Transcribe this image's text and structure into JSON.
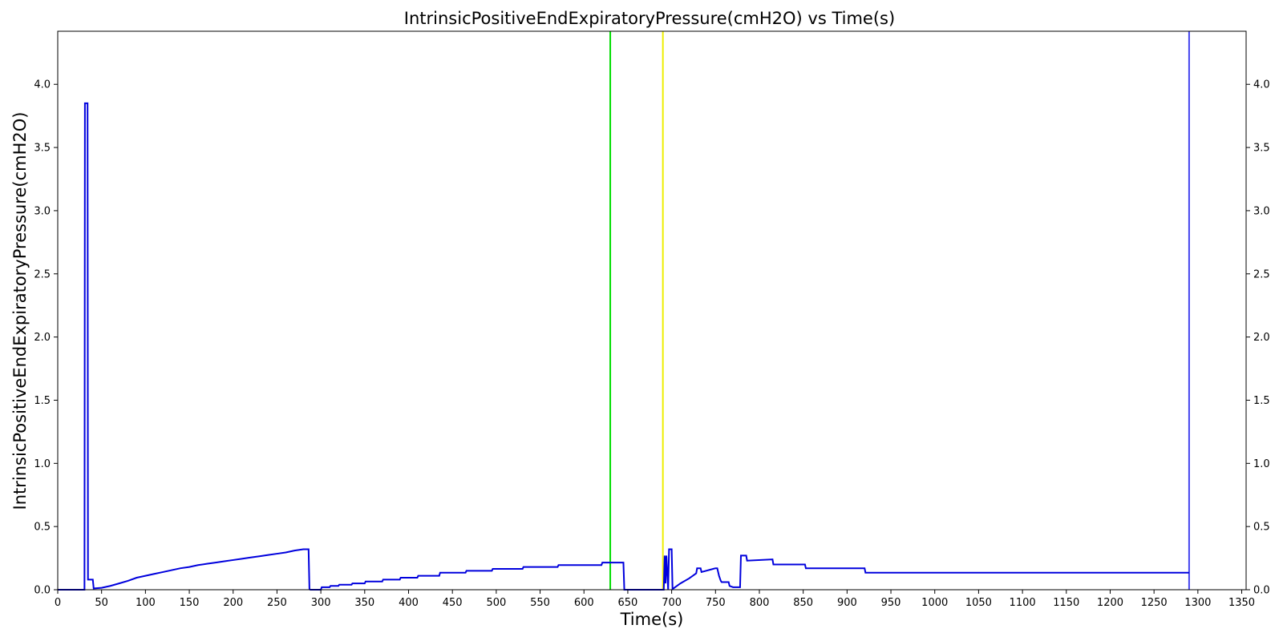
{
  "chart_data": {
    "type": "line",
    "title": "IntrinsicPositiveEndExpiratoryPressure(cmH2O) vs Time(s)",
    "xlabel": "Time(s)",
    "ylabel": "IntrinsicPositiveEndExpiratoryPressure(cmH2O)",
    "xlim": [
      0,
      1355
    ],
    "ylim": [
      0,
      4.42
    ],
    "x_ticks": [
      0,
      50,
      100,
      150,
      200,
      250,
      300,
      350,
      400,
      450,
      500,
      550,
      600,
      650,
      700,
      750,
      800,
      850,
      900,
      950,
      1000,
      1050,
      1100,
      1150,
      1200,
      1250,
      1300,
      1350
    ],
    "y_ticks": [
      0.0,
      0.5,
      1.0,
      1.5,
      2.0,
      2.5,
      3.0,
      3.5,
      4.0
    ],
    "y_tick_labels": [
      "0.0",
      "0.5",
      "1.0",
      "1.5",
      "2.0",
      "2.5",
      "3.0",
      "3.5",
      "4.0"
    ],
    "right_axis_ticks": true,
    "grid": false,
    "series": [
      {
        "color": "#0000dd",
        "x": [
          0,
          30.5,
          31,
          34,
          34.5,
          35.5,
          36,
          40,
          41,
          50,
          60,
          70,
          80,
          90,
          100,
          110,
          120,
          130,
          140,
          150,
          160,
          170,
          180,
          190,
          200,
          210,
          220,
          230,
          240,
          250,
          260,
          270,
          280,
          286,
          287,
          288,
          295,
          300,
          301,
          310,
          311,
          320,
          321,
          335,
          336,
          350,
          351,
          370,
          371,
          390,
          391,
          410,
          411,
          435,
          436,
          465,
          466,
          495,
          496,
          530,
          531,
          570,
          571,
          620,
          621,
          645,
          646,
          690,
          691,
          692,
          693,
          694,
          696,
          697,
          698,
          700,
          701,
          710,
          720,
          728,
          729,
          733,
          734,
          750,
          752,
          753,
          754,
          756,
          757,
          760,
          765,
          766,
          770,
          777,
          778,
          779,
          785,
          786,
          815,
          816,
          852,
          853,
          920,
          921,
          1290
        ],
        "y": [
          0.0,
          0.0,
          3.85,
          3.85,
          0.08,
          0.08,
          0.08,
          0.08,
          0.01,
          0.015,
          0.03,
          0.05,
          0.07,
          0.095,
          0.11,
          0.125,
          0.14,
          0.155,
          0.17,
          0.18,
          0.195,
          0.205,
          0.215,
          0.225,
          0.235,
          0.245,
          0.255,
          0.265,
          0.275,
          0.285,
          0.295,
          0.31,
          0.32,
          0.32,
          0.005,
          0.0,
          0.0,
          0.0,
          0.02,
          0.02,
          0.03,
          0.03,
          0.04,
          0.04,
          0.05,
          0.05,
          0.065,
          0.065,
          0.08,
          0.08,
          0.095,
          0.095,
          0.11,
          0.11,
          0.135,
          0.135,
          0.15,
          0.15,
          0.165,
          0.165,
          0.18,
          0.18,
          0.195,
          0.195,
          0.215,
          0.215,
          0.0,
          0.0,
          0.0,
          0.27,
          0.05,
          0.27,
          0.0,
          0.32,
          0.32,
          0.32,
          0.005,
          0.05,
          0.09,
          0.13,
          0.17,
          0.17,
          0.14,
          0.17,
          0.17,
          0.14,
          0.11,
          0.07,
          0.06,
          0.06,
          0.06,
          0.03,
          0.02,
          0.02,
          0.02,
          0.27,
          0.27,
          0.23,
          0.24,
          0.2,
          0.2,
          0.17,
          0.17,
          0.135,
          0.135
        ]
      }
    ],
    "vertical_lines": [
      {
        "x": 630,
        "color": "#00dd00"
      },
      {
        "x": 690,
        "color": "#eeee00"
      },
      {
        "x": 1290,
        "color": "#4444ee"
      }
    ]
  }
}
